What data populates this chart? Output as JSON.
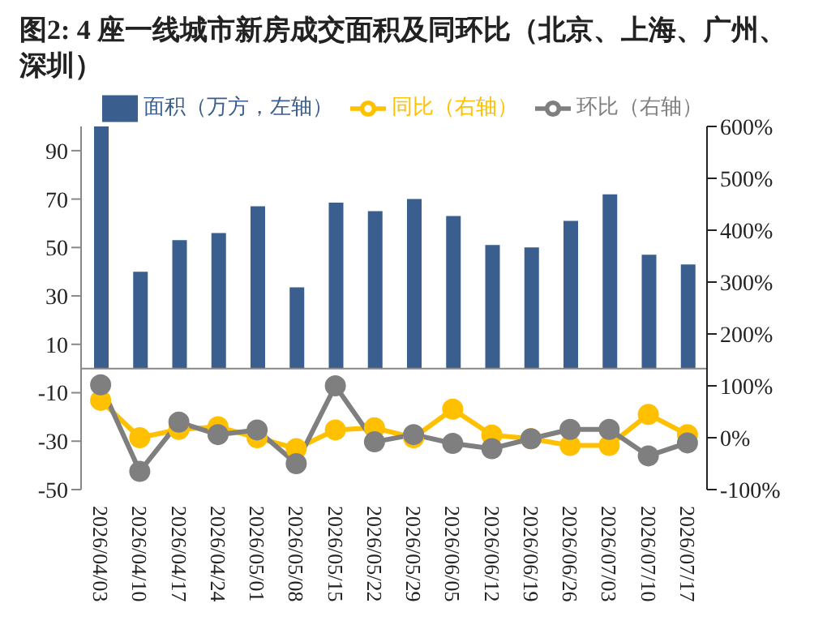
{
  "chart_data": {
    "type": "bar",
    "title": "图2: 4 座一线城市新房成交面积及同环比（北京、上海、广州、深圳）",
    "categories": [
      "2026/04/03",
      "2026/04/10",
      "2026/04/17",
      "2026/04/24",
      "2026/05/01",
      "2026/05/08",
      "2026/05/15",
      "2026/05/22",
      "2026/05/29",
      "2026/06/05",
      "2026/06/12",
      "2026/06/19",
      "2026/06/26",
      "2026/07/03",
      "2026/07/10",
      "2026/07/17"
    ],
    "series": [
      {
        "name": "面积（万方，左轴）",
        "color": "#3a5f8f",
        "values": [
          100,
          40,
          53,
          56,
          67,
          33.5,
          68.5,
          65,
          70,
          63,
          51,
          50,
          61,
          72,
          47,
          43
        ]
      },
      {
        "name": "同比（右轴）",
        "type": "line",
        "axis": "y2",
        "color": "#ffc000",
        "values": [
          72,
          0,
          16,
          21,
          0,
          -21,
          15,
          19,
          0,
          55,
          5,
          -2,
          -15,
          -15,
          45,
          6
        ]
      },
      {
        "name": "环比（右轴）",
        "type": "line",
        "axis": "y2",
        "color": "#7f7f7f",
        "values": [
          102,
          -65,
          30,
          6,
          15,
          -50,
          100,
          -8,
          6,
          -11,
          -21,
          -2,
          16,
          16,
          -35,
          -10
        ]
      }
    ],
    "ylim": [
      -50,
      100
    ],
    "yticks": [
      -50,
      -30,
      -10,
      10,
      30,
      50,
      70,
      90
    ],
    "y2lim": [
      -100,
      600
    ],
    "y2ticks": [
      {
        "value": -100,
        "label": "-100%"
      },
      {
        "value": 0,
        "label": "0%"
      },
      {
        "value": 100,
        "label": "100%"
      },
      {
        "value": 200,
        "label": "200%"
      },
      {
        "value": 300,
        "label": "300%"
      },
      {
        "value": 400,
        "label": "400%"
      },
      {
        "value": 500,
        "label": "500%"
      },
      {
        "value": 600,
        "label": "600%"
      }
    ],
    "legend": "top",
    "marker": "circle"
  }
}
